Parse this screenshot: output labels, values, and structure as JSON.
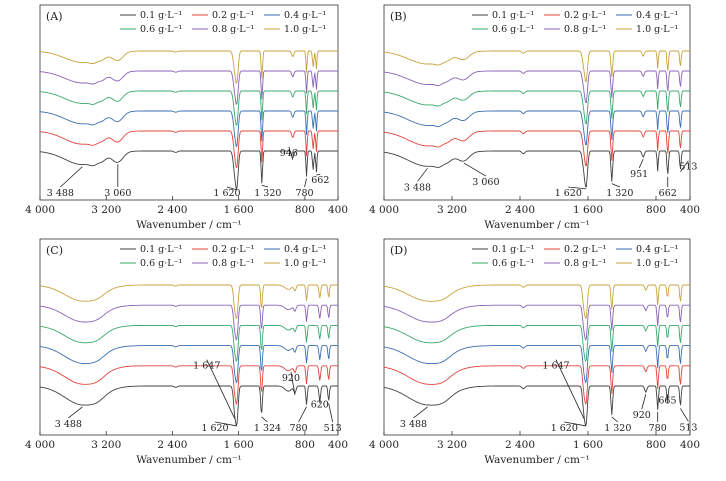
{
  "chart_data": [
    {
      "type": "line",
      "panel_label": "(A)",
      "xlabel": "Wavenumber / cm⁻¹",
      "xlim": [
        4000,
        400
      ],
      "xticks": [
        4000,
        3200,
        2400,
        1600,
        800,
        400
      ],
      "xtick_labels": [
        "4 000",
        "3 200",
        "2 400",
        "1 600",
        "800",
        "400"
      ],
      "legend": [
        "0.1 g·L⁻¹",
        "0.2 g·L⁻¹",
        "0.4 g·L⁻¹",
        "0.6 g·L⁻¹",
        "0.8 g·L⁻¹",
        "1.0 g·L⁻¹"
      ],
      "colors": [
        "#404040",
        "#e0443c",
        "#3a6fb0",
        "#3aa86b",
        "#8b63b8",
        "#c9a23c"
      ],
      "legend_position": "top-right",
      "profile": "A",
      "annotations": [
        {
          "text": "3 488",
          "x": 3488
        },
        {
          "text": "3 060",
          "x": 3060
        },
        {
          "text": "1 620",
          "x": 1620
        },
        {
          "text": "1 320",
          "x": 1320
        },
        {
          "text": "946",
          "x": 946
        },
        {
          "text": "780",
          "x": 780
        },
        {
          "text": "662",
          "x": 662
        }
      ]
    },
    {
      "type": "line",
      "panel_label": "(B)",
      "xlabel": "Wavenumber / cm⁻¹",
      "xlim": [
        4000,
        400
      ],
      "xticks": [
        4000,
        3200,
        2400,
        1600,
        800,
        400
      ],
      "xtick_labels": [
        "4 000",
        "3 200",
        "2 400",
        "1 600",
        "800",
        "400"
      ],
      "legend": [
        "0.1 g·L⁻¹",
        "0.2 g·L⁻¹",
        "0.4 g·L⁻¹",
        "0.6 g·L⁻¹",
        "0.8 g·L⁻¹",
        "1.0 g·L⁻¹"
      ],
      "colors": [
        "#404040",
        "#e0443c",
        "#3a6fb0",
        "#3aa86b",
        "#8b63b8",
        "#c9a23c"
      ],
      "legend_position": "top-right",
      "profile": "B",
      "annotations": [
        {
          "text": "3 488",
          "x": 3488
        },
        {
          "text": "3 060",
          "x": 3060
        },
        {
          "text": "1 620",
          "x": 1620
        },
        {
          "text": "1 320",
          "x": 1320
        },
        {
          "text": "951",
          "x": 951
        },
        {
          "text": "662",
          "x": 662
        },
        {
          "text": "513",
          "x": 513
        }
      ]
    },
    {
      "type": "line",
      "panel_label": "(C)",
      "xlabel": "Wavenumber / cm⁻¹",
      "xlim": [
        4000,
        400
      ],
      "xticks": [
        4000,
        3200,
        2400,
        1600,
        800,
        400
      ],
      "xtick_labels": [
        "4 000",
        "3 200",
        "2 400",
        "1 600",
        "800",
        "400"
      ],
      "legend": [
        "0.1 g·L⁻¹",
        "0.2 g·L⁻¹",
        "0.4 g·L⁻¹",
        "0.6 g·L⁻¹",
        "0.8 g·L⁻¹",
        "1.0 g·L⁻¹"
      ],
      "colors": [
        "#404040",
        "#e0443c",
        "#3a6fb0",
        "#3aa86b",
        "#8b63b8",
        "#c9a23c"
      ],
      "legend_position": "top-right",
      "profile": "C",
      "annotations": [
        {
          "text": "3 488",
          "x": 3488
        },
        {
          "text": "1 647",
          "x": 1647
        },
        {
          "text": "1 620",
          "x": 1620
        },
        {
          "text": "1 324",
          "x": 1324
        },
        {
          "text": "920",
          "x": 920
        },
        {
          "text": "780",
          "x": 780
        },
        {
          "text": "620",
          "x": 620
        },
        {
          "text": "513",
          "x": 513
        }
      ]
    },
    {
      "type": "line",
      "panel_label": "(D)",
      "xlabel": "Wavenumber / cm⁻¹",
      "xlim": [
        4000,
        400
      ],
      "xticks": [
        4000,
        3200,
        2400,
        1600,
        800,
        400
      ],
      "xtick_labels": [
        "4 000",
        "3 200",
        "2 400",
        "1 600",
        "800",
        "400"
      ],
      "legend": [
        "0.1 g·L⁻¹",
        "0.2 g·L⁻¹",
        "0.4 g·L⁻¹",
        "0.6 g·L⁻¹",
        "0.8 g·L⁻¹",
        "1.0 g·L⁻¹"
      ],
      "colors": [
        "#404040",
        "#e0443c",
        "#3a6fb0",
        "#3aa86b",
        "#8b63b8",
        "#c9a23c"
      ],
      "legend_position": "top-right",
      "profile": "D",
      "annotations": [
        {
          "text": "3 488",
          "x": 3488
        },
        {
          "text": "1 647",
          "x": 1647
        },
        {
          "text": "1 620",
          "x": 1620
        },
        {
          "text": "1 320",
          "x": 1320
        },
        {
          "text": "920",
          "x": 920
        },
        {
          "text": "780",
          "x": 780
        },
        {
          "text": "665",
          "x": 665
        },
        {
          "text": "513",
          "x": 513
        }
      ]
    }
  ]
}
